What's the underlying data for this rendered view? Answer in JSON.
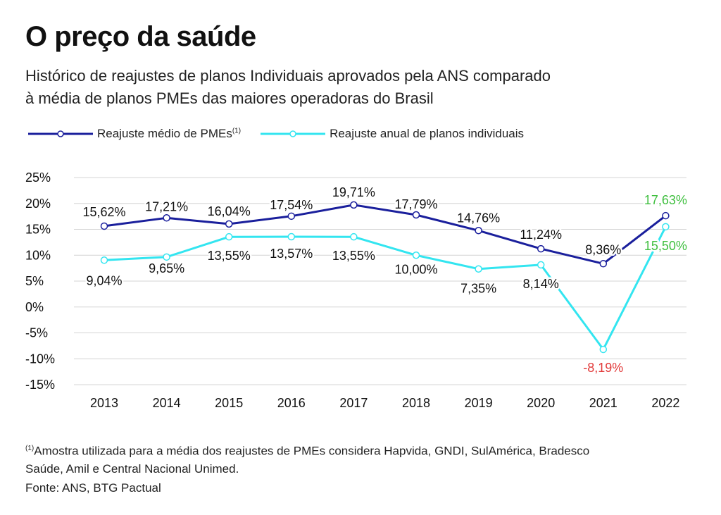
{
  "header": {
    "title": "O preço da saúde",
    "subtitle_line1": "Histórico de reajustes de planos Individuais aprovados pela ANS comparado",
    "subtitle_line2": "à média de planos PMEs das maiores operadoras do Brasil"
  },
  "legend": {
    "pme_label": "Reajuste médio de PMEs",
    "pme_marker": "(1)",
    "individual_label": "Reajuste anual de planos individuais"
  },
  "colors": {
    "pme": "#1a1f9c",
    "individual": "#33e5f0",
    "positive_highlight": "#3fbf3f",
    "negative_highlight": "#e23a3a",
    "grid": "#d4d4d4"
  },
  "chart_data": {
    "type": "line",
    "title": "O preço da saúde",
    "categories": [
      "2013",
      "2014",
      "2015",
      "2016",
      "2017",
      "2018",
      "2019",
      "2020",
      "2021",
      "2022"
    ],
    "series": [
      {
        "name": "Reajuste médio de PMEs",
        "values": [
          15.62,
          17.21,
          16.04,
          17.54,
          19.71,
          17.79,
          14.76,
          11.24,
          8.36,
          17.63
        ],
        "labels": [
          "15,62%",
          "17,21%",
          "16,04%",
          "17,54%",
          "19,71%",
          "17,79%",
          "14,76%",
          "11,24%",
          "8,36%",
          "17,63%"
        ]
      },
      {
        "name": "Reajuste anual de planos individuais",
        "values": [
          9.04,
          9.65,
          13.55,
          13.57,
          13.55,
          10.0,
          7.35,
          8.14,
          -8.19,
          15.5
        ],
        "labels": [
          "9,04%",
          "9,65%",
          "13,55%",
          "13,57%",
          "13,55%",
          "10,00%",
          "7,35%",
          "8,14%",
          "-8,19%",
          "15,50%"
        ]
      }
    ],
    "yticks": [
      25,
      20,
      15,
      10,
      5,
      0,
      -5,
      -10,
      -15
    ],
    "ytick_labels": [
      "25%",
      "20%",
      "15%",
      "10%",
      "5%",
      "0%",
      "-5%",
      "-10%",
      "-15%"
    ],
    "ylim": [
      -15,
      25
    ],
    "xlabel": "",
    "ylabel": "",
    "grid": true
  },
  "footer": {
    "footnote_marker": "(1)",
    "footnote_line1": "Amostra utilizada para a média dos reajustes de PMEs considera Hapvida, GNDI, SulAmérica, Bradesco",
    "footnote_line2": "Saúde, Amil e Central Nacional Unimed.",
    "source": "Fonte: ANS, BTG Pactual"
  }
}
